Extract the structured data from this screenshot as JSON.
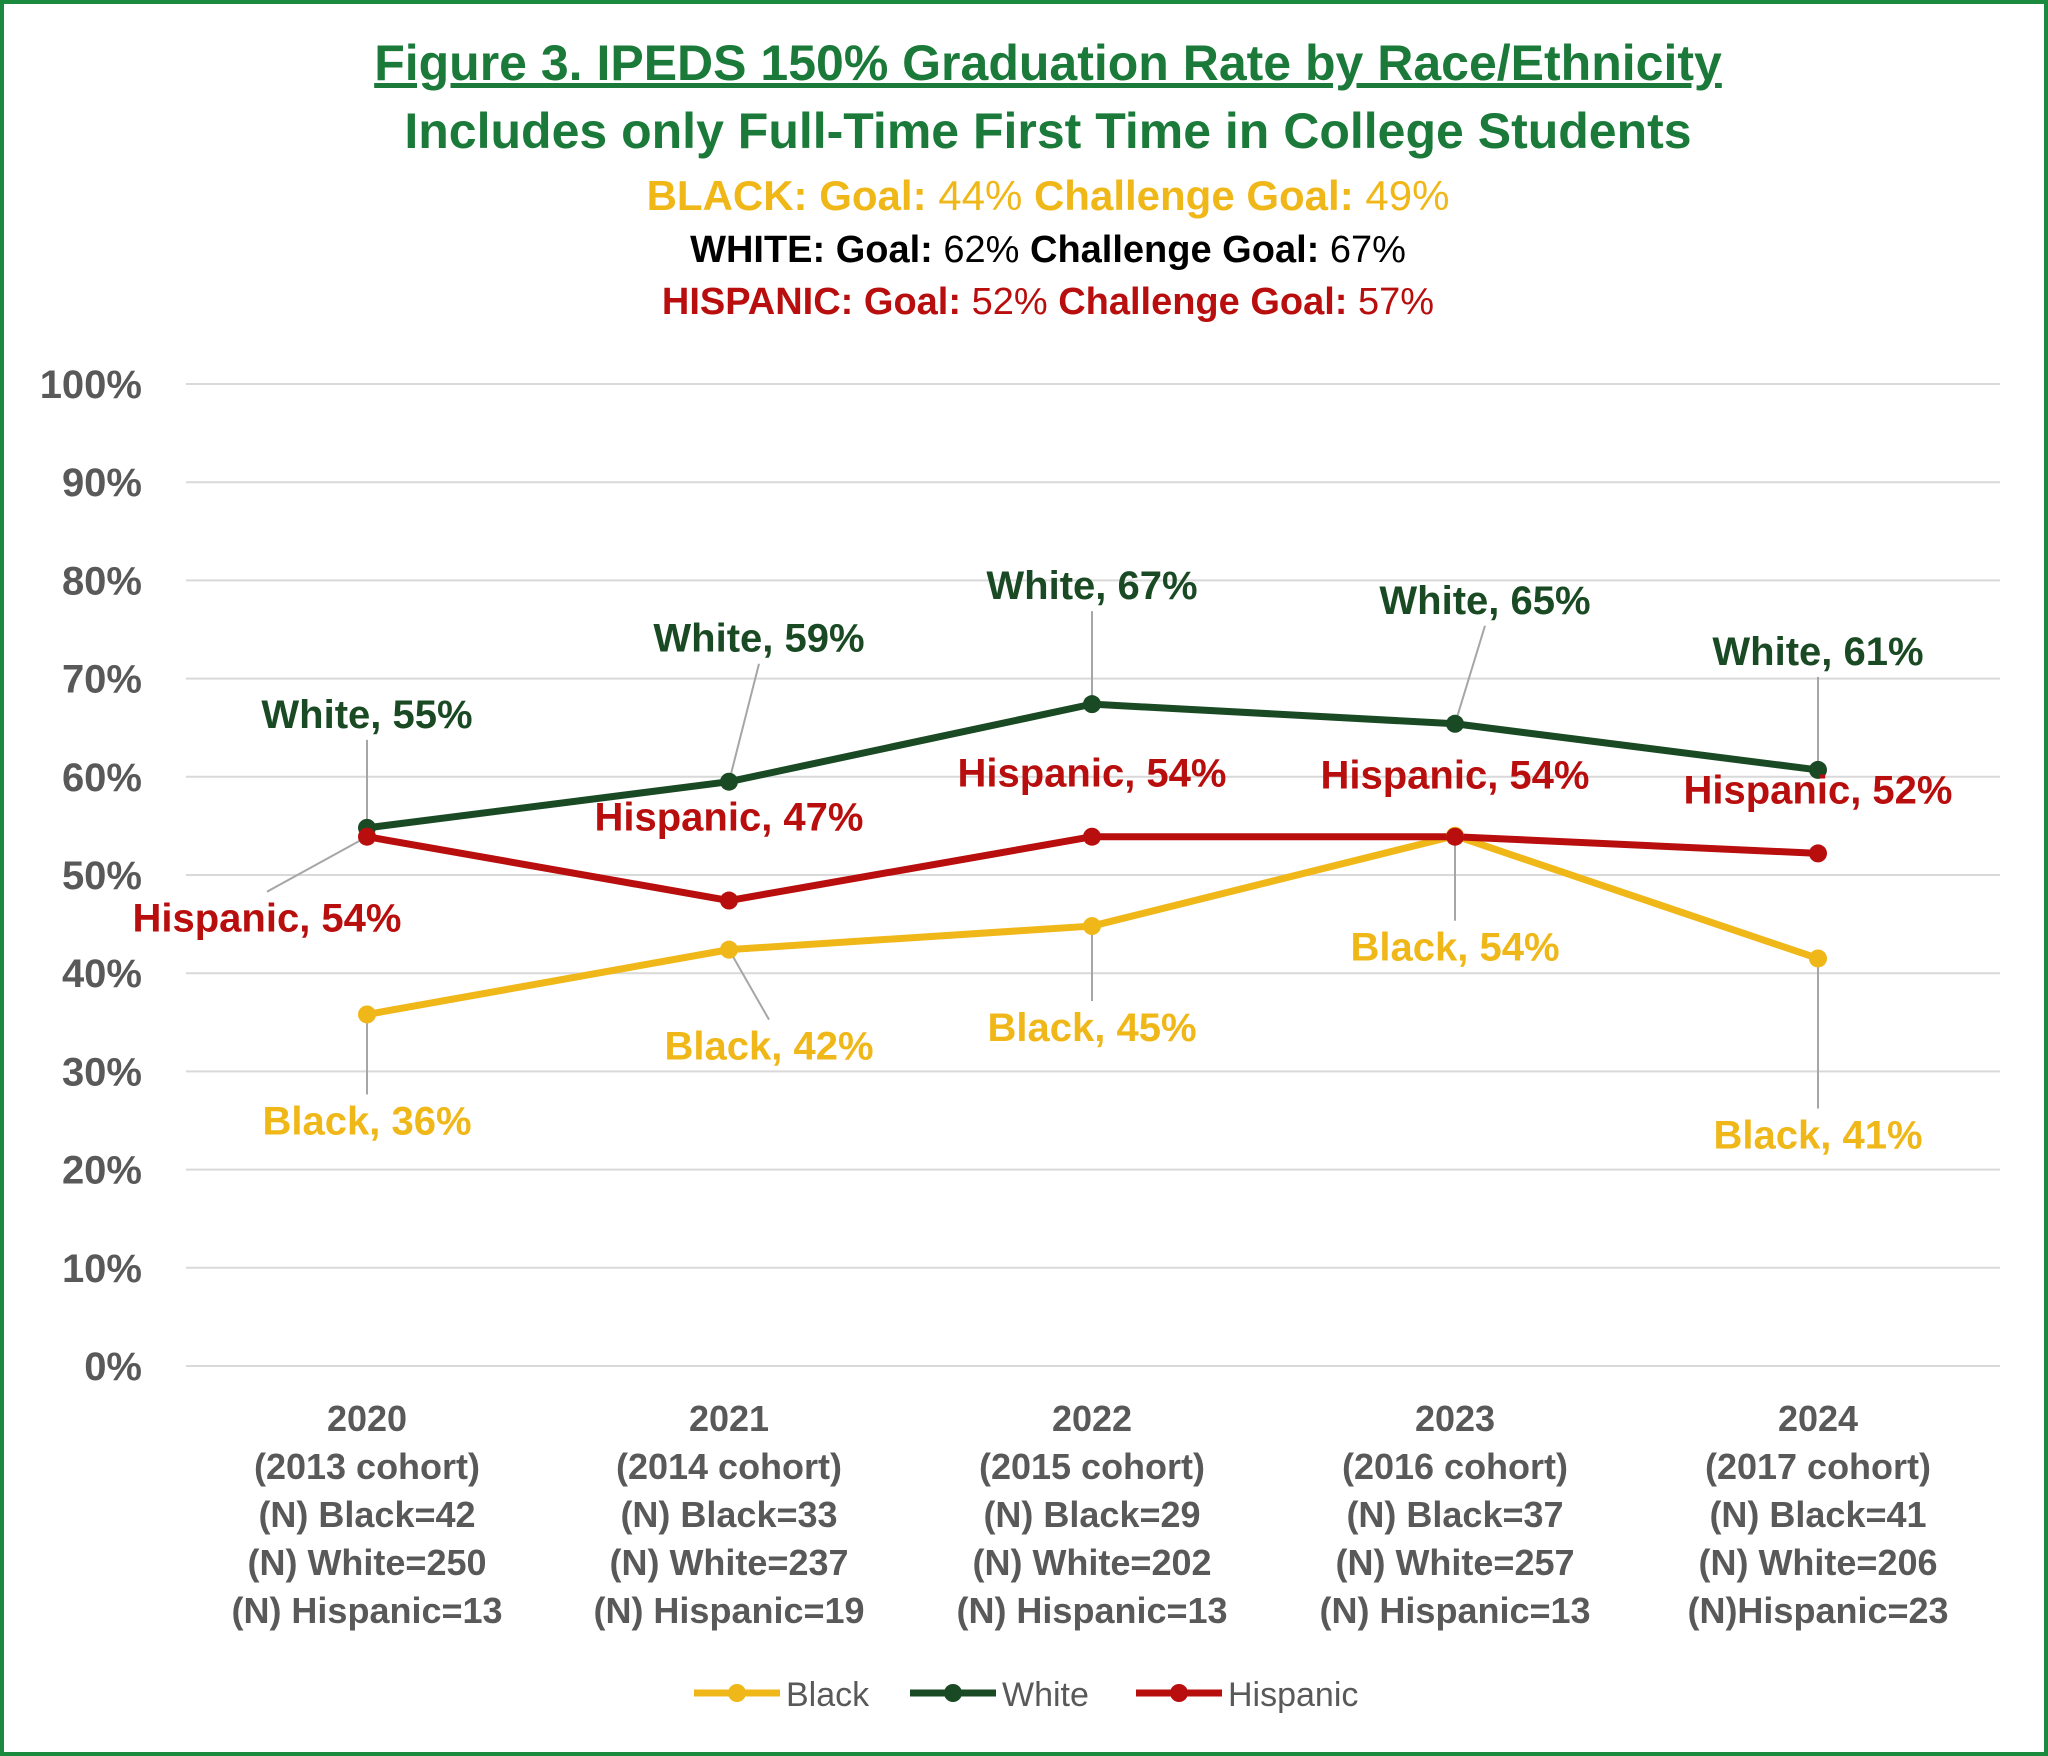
{
  "chart_data": {
    "type": "line",
    "title": "Figure 3. IPEDS 150% Graduation Rate by Race/Ethnicity",
    "subtitle": "Includes only Full-Time First Time in College Students",
    "goals": [
      {
        "group": "BLACK",
        "goal_label": "Goal:",
        "goal": "44%",
        "challenge_label": "Challenge Goal:",
        "challenge": "49%",
        "color": "#f0b719"
      },
      {
        "group": "WHITE",
        "goal_label": "Goal:",
        "goal": "62%",
        "challenge_label": "Challenge Goal:",
        "challenge": "67%",
        "color": "#000000"
      },
      {
        "group": "HISPANIC",
        "goal_label": "Goal:",
        "goal": "52%",
        "challenge_label": "Challenge Goal:",
        "challenge": "57%",
        "color": "#b90e0e"
      }
    ],
    "categories": [
      [
        "2020",
        "(2013 cohort)",
        "(N) Black=42",
        "(N) White=250",
        "(N) Hispanic=13"
      ],
      [
        "2021",
        "(2014 cohort)",
        "(N) Black=33",
        "(N) White=237",
        "(N) Hispanic=19"
      ],
      [
        "2022",
        "(2015 cohort)",
        "(N) Black=29",
        "(N) White=202",
        "(N) Hispanic=13"
      ],
      [
        "2023",
        "(2016 cohort)",
        "(N) Black=37",
        "(N) White=257",
        "(N) Hispanic=13"
      ],
      [
        "2024",
        "(2017 cohort)",
        "(N) Black=41",
        "(N) White=206",
        "(N)Hispanic=23"
      ]
    ],
    "series": [
      {
        "name": "Black",
        "color": "#f0b719",
        "values": [
          35.8,
          42.4,
          44.8,
          54.0,
          41.5
        ],
        "labels": [
          "Black, 36%",
          "Black, 42%",
          "Black, 45%",
          "Black, 54%",
          "Black, 41%"
        ]
      },
      {
        "name": "White",
        "color": "#1a4a24",
        "values": [
          54.8,
          59.5,
          67.4,
          65.4,
          60.7
        ],
        "labels": [
          "White, 55%",
          "White, 59%",
          "White, 67%",
          "White, 65%",
          "White, 61%"
        ]
      },
      {
        "name": "Hispanic",
        "color": "#b90e0e",
        "values": [
          53.9,
          47.4,
          53.9,
          53.9,
          52.2
        ],
        "labels": [
          "Hispanic, 54%",
          "Hispanic, 47%",
          "Hispanic, 54%",
          "Hispanic, 54%",
          "Hispanic, 52%"
        ]
      }
    ],
    "yticks": [
      "0%",
      "10%",
      "20%",
      "30%",
      "40%",
      "50%",
      "60%",
      "70%",
      "80%",
      "90%",
      "100%"
    ],
    "ylim": [
      0,
      100
    ],
    "legend": [
      "Black",
      "White",
      "Hispanic"
    ],
    "legend_position": "bottom"
  }
}
